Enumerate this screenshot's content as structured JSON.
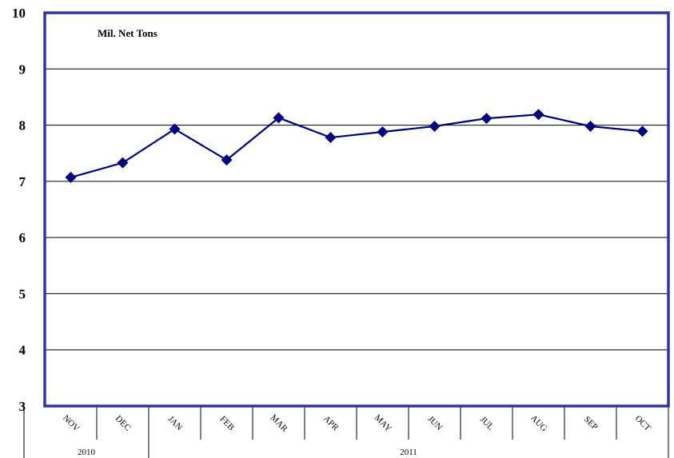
{
  "chart_data": {
    "type": "line",
    "unit_label": "Mil. Net Tons",
    "categories": [
      "NOV",
      "DEC",
      "JAN",
      "FEB",
      "MAR",
      "APR",
      "MAY",
      "JUN",
      "JUL",
      "AUG",
      "SEP",
      "OCT"
    ],
    "year_groups": [
      {
        "label": "2010",
        "start": 0,
        "end": 1
      },
      {
        "label": "2011",
        "start": 2,
        "end": 11
      }
    ],
    "series": [
      {
        "values": [
          7.07,
          7.33,
          7.93,
          7.38,
          8.13,
          7.78,
          7.88,
          7.98,
          8.12,
          8.19,
          7.98,
          7.89
        ]
      }
    ],
    "ylim": [
      3,
      10
    ],
    "yticks": [
      3,
      4,
      5,
      6,
      7,
      8,
      9,
      10
    ],
    "grid": true,
    "legend": "none",
    "colors": {
      "series": "#000080",
      "frame": "#3333a0",
      "grid": "#000000"
    }
  }
}
